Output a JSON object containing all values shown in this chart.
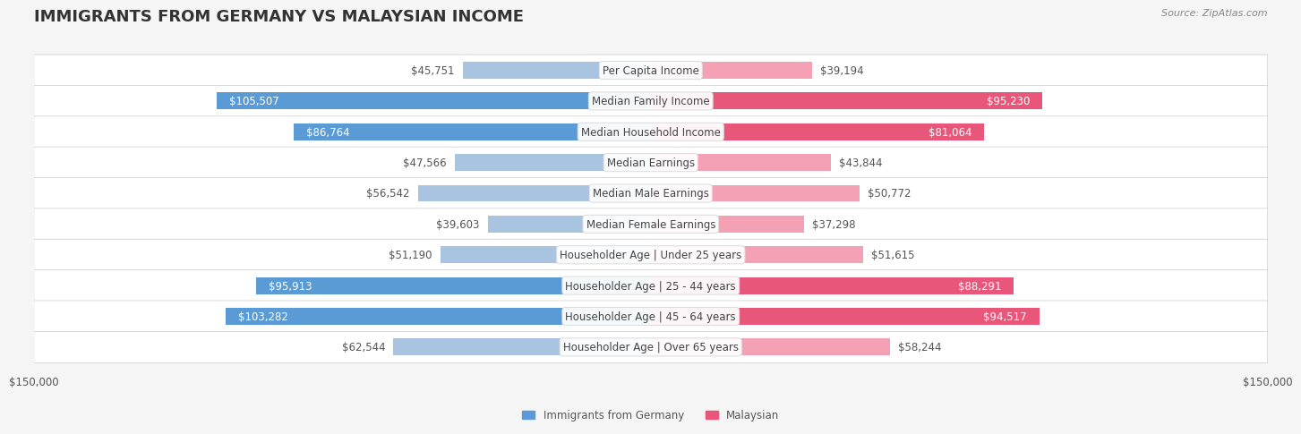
{
  "title": "IMMIGRANTS FROM GERMANY VS MALAYSIAN INCOME",
  "source": "Source: ZipAtlas.com",
  "categories": [
    "Per Capita Income",
    "Median Family Income",
    "Median Household Income",
    "Median Earnings",
    "Median Male Earnings",
    "Median Female Earnings",
    "Householder Age | Under 25 years",
    "Householder Age | 25 - 44 years",
    "Householder Age | 45 - 64 years",
    "Householder Age | Over 65 years"
  ],
  "germany_values": [
    45751,
    105507,
    86764,
    47566,
    56542,
    39603,
    51190,
    95913,
    103282,
    62544
  ],
  "malaysian_values": [
    39194,
    95230,
    81064,
    43844,
    50772,
    37298,
    51615,
    88291,
    94517,
    58244
  ],
  "germany_labels": [
    "$45,751",
    "$105,507",
    "$86,764",
    "$47,566",
    "$56,542",
    "$39,603",
    "$51,190",
    "$95,913",
    "$103,282",
    "$62,544"
  ],
  "malaysian_labels": [
    "$39,194",
    "$95,230",
    "$81,064",
    "$43,844",
    "$50,772",
    "$37,298",
    "$51,615",
    "$88,291",
    "$94,517",
    "$58,244"
  ],
  "max_value": 150000,
  "germany_color_bar": "#a8c4e0",
  "malaysian_color_bar": "#f4a0b5",
  "germany_color_highlight": "#5b9bd5",
  "malaysian_color_highlight": "#e8567a",
  "highlight_threshold": 75000,
  "background_color": "#f5f5f5",
  "row_bg_color": "#ffffff",
  "row_alt_bg_color": "#f0f0f0",
  "legend_germany": "Immigrants from Germany",
  "legend_malaysian": "Malaysian",
  "bar_height": 0.55,
  "title_fontsize": 13,
  "label_fontsize": 8.5,
  "category_fontsize": 8.5,
  "axis_fontsize": 8.5
}
